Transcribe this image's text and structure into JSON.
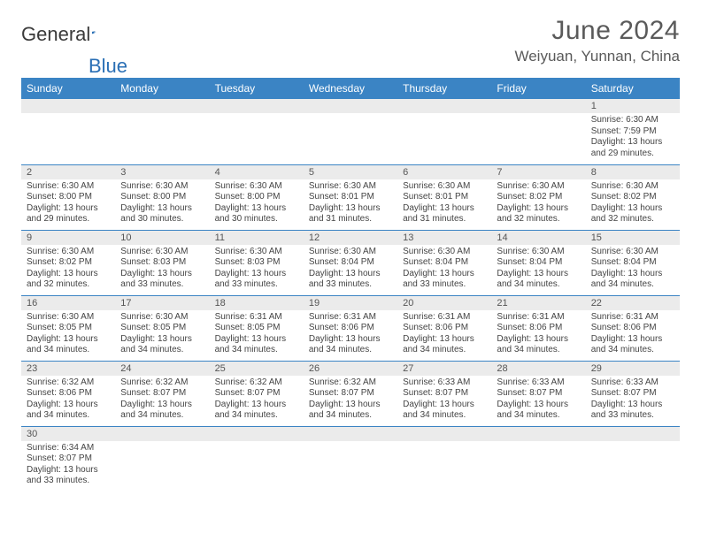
{
  "brand": {
    "name1": "General",
    "name2": "Blue"
  },
  "title": "June 2024",
  "location": "Weiyuan, Yunnan, China",
  "colors": {
    "header_bg": "#3b84c4",
    "header_fg": "#ffffff",
    "daynum_bg": "#ebebeb",
    "rule": "#3b84c4",
    "text": "#3a3a3a",
    "brand_blue": "#2a6fb5"
  },
  "fonts": {
    "title_pt": 30,
    "location_pt": 17,
    "dayhdr_pt": 12,
    "daynum_pt": 11,
    "body_pt": 10
  },
  "calendar": {
    "columns": [
      "Sunday",
      "Monday",
      "Tuesday",
      "Wednesday",
      "Thursday",
      "Friday",
      "Saturday"
    ],
    "first_weekday_index": 6,
    "days": [
      {
        "n": 1,
        "sunrise": "6:30 AM",
        "sunset": "7:59 PM",
        "daylight": "13 hours and 29 minutes."
      },
      {
        "n": 2,
        "sunrise": "6:30 AM",
        "sunset": "8:00 PM",
        "daylight": "13 hours and 29 minutes."
      },
      {
        "n": 3,
        "sunrise": "6:30 AM",
        "sunset": "8:00 PM",
        "daylight": "13 hours and 30 minutes."
      },
      {
        "n": 4,
        "sunrise": "6:30 AM",
        "sunset": "8:00 PM",
        "daylight": "13 hours and 30 minutes."
      },
      {
        "n": 5,
        "sunrise": "6:30 AM",
        "sunset": "8:01 PM",
        "daylight": "13 hours and 31 minutes."
      },
      {
        "n": 6,
        "sunrise": "6:30 AM",
        "sunset": "8:01 PM",
        "daylight": "13 hours and 31 minutes."
      },
      {
        "n": 7,
        "sunrise": "6:30 AM",
        "sunset": "8:02 PM",
        "daylight": "13 hours and 32 minutes."
      },
      {
        "n": 8,
        "sunrise": "6:30 AM",
        "sunset": "8:02 PM",
        "daylight": "13 hours and 32 minutes."
      },
      {
        "n": 9,
        "sunrise": "6:30 AM",
        "sunset": "8:02 PM",
        "daylight": "13 hours and 32 minutes."
      },
      {
        "n": 10,
        "sunrise": "6:30 AM",
        "sunset": "8:03 PM",
        "daylight": "13 hours and 33 minutes."
      },
      {
        "n": 11,
        "sunrise": "6:30 AM",
        "sunset": "8:03 PM",
        "daylight": "13 hours and 33 minutes."
      },
      {
        "n": 12,
        "sunrise": "6:30 AM",
        "sunset": "8:04 PM",
        "daylight": "13 hours and 33 minutes."
      },
      {
        "n": 13,
        "sunrise": "6:30 AM",
        "sunset": "8:04 PM",
        "daylight": "13 hours and 33 minutes."
      },
      {
        "n": 14,
        "sunrise": "6:30 AM",
        "sunset": "8:04 PM",
        "daylight": "13 hours and 34 minutes."
      },
      {
        "n": 15,
        "sunrise": "6:30 AM",
        "sunset": "8:04 PM",
        "daylight": "13 hours and 34 minutes."
      },
      {
        "n": 16,
        "sunrise": "6:30 AM",
        "sunset": "8:05 PM",
        "daylight": "13 hours and 34 minutes."
      },
      {
        "n": 17,
        "sunrise": "6:30 AM",
        "sunset": "8:05 PM",
        "daylight": "13 hours and 34 minutes."
      },
      {
        "n": 18,
        "sunrise": "6:31 AM",
        "sunset": "8:05 PM",
        "daylight": "13 hours and 34 minutes."
      },
      {
        "n": 19,
        "sunrise": "6:31 AM",
        "sunset": "8:06 PM",
        "daylight": "13 hours and 34 minutes."
      },
      {
        "n": 20,
        "sunrise": "6:31 AM",
        "sunset": "8:06 PM",
        "daylight": "13 hours and 34 minutes."
      },
      {
        "n": 21,
        "sunrise": "6:31 AM",
        "sunset": "8:06 PM",
        "daylight": "13 hours and 34 minutes."
      },
      {
        "n": 22,
        "sunrise": "6:31 AM",
        "sunset": "8:06 PM",
        "daylight": "13 hours and 34 minutes."
      },
      {
        "n": 23,
        "sunrise": "6:32 AM",
        "sunset": "8:06 PM",
        "daylight": "13 hours and 34 minutes."
      },
      {
        "n": 24,
        "sunrise": "6:32 AM",
        "sunset": "8:07 PM",
        "daylight": "13 hours and 34 minutes."
      },
      {
        "n": 25,
        "sunrise": "6:32 AM",
        "sunset": "8:07 PM",
        "daylight": "13 hours and 34 minutes."
      },
      {
        "n": 26,
        "sunrise": "6:32 AM",
        "sunset": "8:07 PM",
        "daylight": "13 hours and 34 minutes."
      },
      {
        "n": 27,
        "sunrise": "6:33 AM",
        "sunset": "8:07 PM",
        "daylight": "13 hours and 34 minutes."
      },
      {
        "n": 28,
        "sunrise": "6:33 AM",
        "sunset": "8:07 PM",
        "daylight": "13 hours and 34 minutes."
      },
      {
        "n": 29,
        "sunrise": "6:33 AM",
        "sunset": "8:07 PM",
        "daylight": "13 hours and 33 minutes."
      },
      {
        "n": 30,
        "sunrise": "6:34 AM",
        "sunset": "8:07 PM",
        "daylight": "13 hours and 33 minutes."
      }
    ],
    "labels": {
      "sunrise": "Sunrise:",
      "sunset": "Sunset:",
      "daylight": "Daylight:"
    }
  }
}
